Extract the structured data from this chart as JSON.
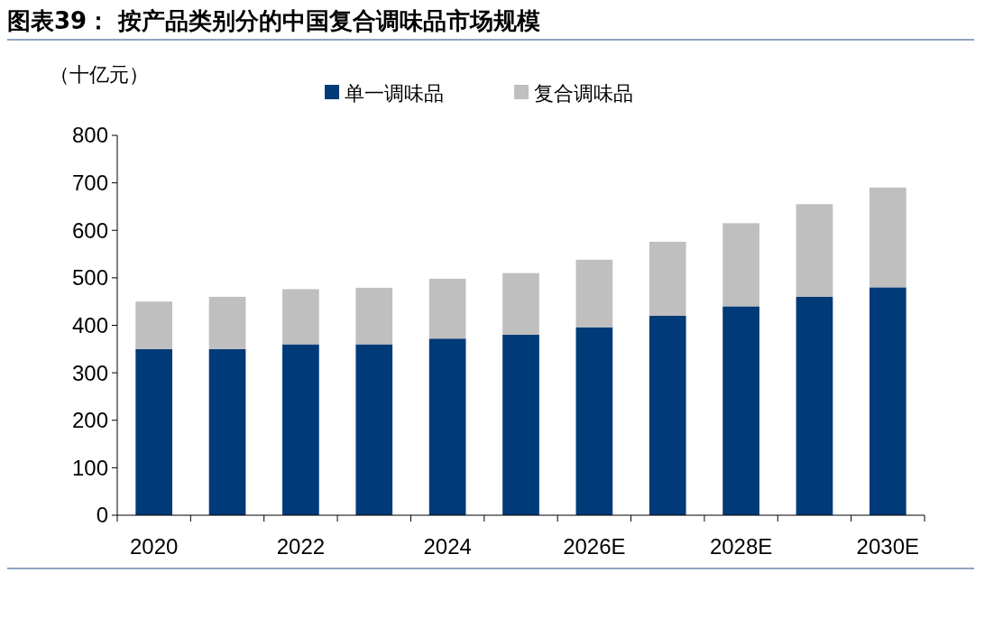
{
  "chart_data": {
    "type": "bar",
    "title": "图表39：  按产品类别分的中国复合调味品市场规模",
    "ylabel": "（十亿元）",
    "categories": [
      "2020",
      null,
      "2022",
      null,
      "2024",
      null,
      "2026E",
      null,
      "2028E",
      null,
      "2030E"
    ],
    "series": [
      {
        "name": "单一调味品",
        "color": "#003a78",
        "values": [
          350,
          350,
          360,
          360,
          372,
          380,
          396,
          420,
          440,
          460,
          480
        ]
      },
      {
        "name": "复合调味品",
        "color": "#bfbfbf",
        "values": [
          100,
          110,
          116,
          119,
          126,
          130,
          142,
          156,
          175,
          195,
          210
        ]
      }
    ],
    "stacked": true,
    "ylim": [
      0,
      800
    ],
    "yticks": [
      0,
      100,
      200,
      300,
      400,
      500,
      600,
      700,
      800
    ],
    "legend": "top",
    "grid": false
  }
}
